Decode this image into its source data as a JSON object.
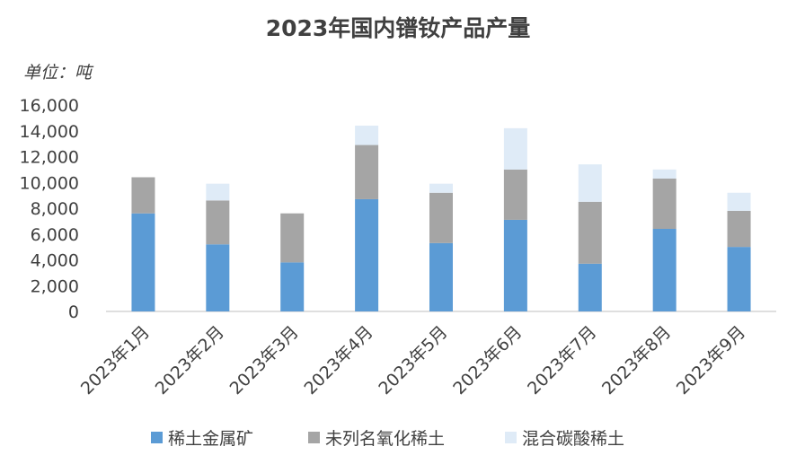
{
  "chart_data": {
    "type": "bar",
    "stacked": true,
    "title": "2023年国内镨钕产品产量",
    "unit_label": "单位：吨",
    "categories": [
      "2023年1月",
      "2023年2月",
      "2023年3月",
      "2023年4月",
      "2023年5月",
      "2023年6月",
      "2023年7月",
      "2023年8月",
      "2023年9月"
    ],
    "series": [
      {
        "name": "稀土金属矿",
        "color": "#5b9bd5",
        "values": [
          7600,
          5200,
          3800,
          8700,
          5300,
          7100,
          3700,
          6400,
          5000
        ]
      },
      {
        "name": "未列名氧化稀土",
        "color": "#a5a5a5",
        "values": [
          2800,
          3400,
          3800,
          4200,
          3900,
          3900,
          4800,
          3900,
          2800
        ]
      },
      {
        "name": "混合碳酸稀土",
        "color": "#dfebf7",
        "values": [
          0,
          1300,
          0,
          1500,
          700,
          3200,
          2900,
          700,
          1400
        ]
      }
    ],
    "ylim": [
      0,
      16000
    ],
    "yticks": [
      "0",
      "2,000",
      "4,000",
      "6,000",
      "8,000",
      "10,000",
      "12,000",
      "14,000",
      "16,000"
    ],
    "legend_position": "bottom",
    "grid": false
  }
}
